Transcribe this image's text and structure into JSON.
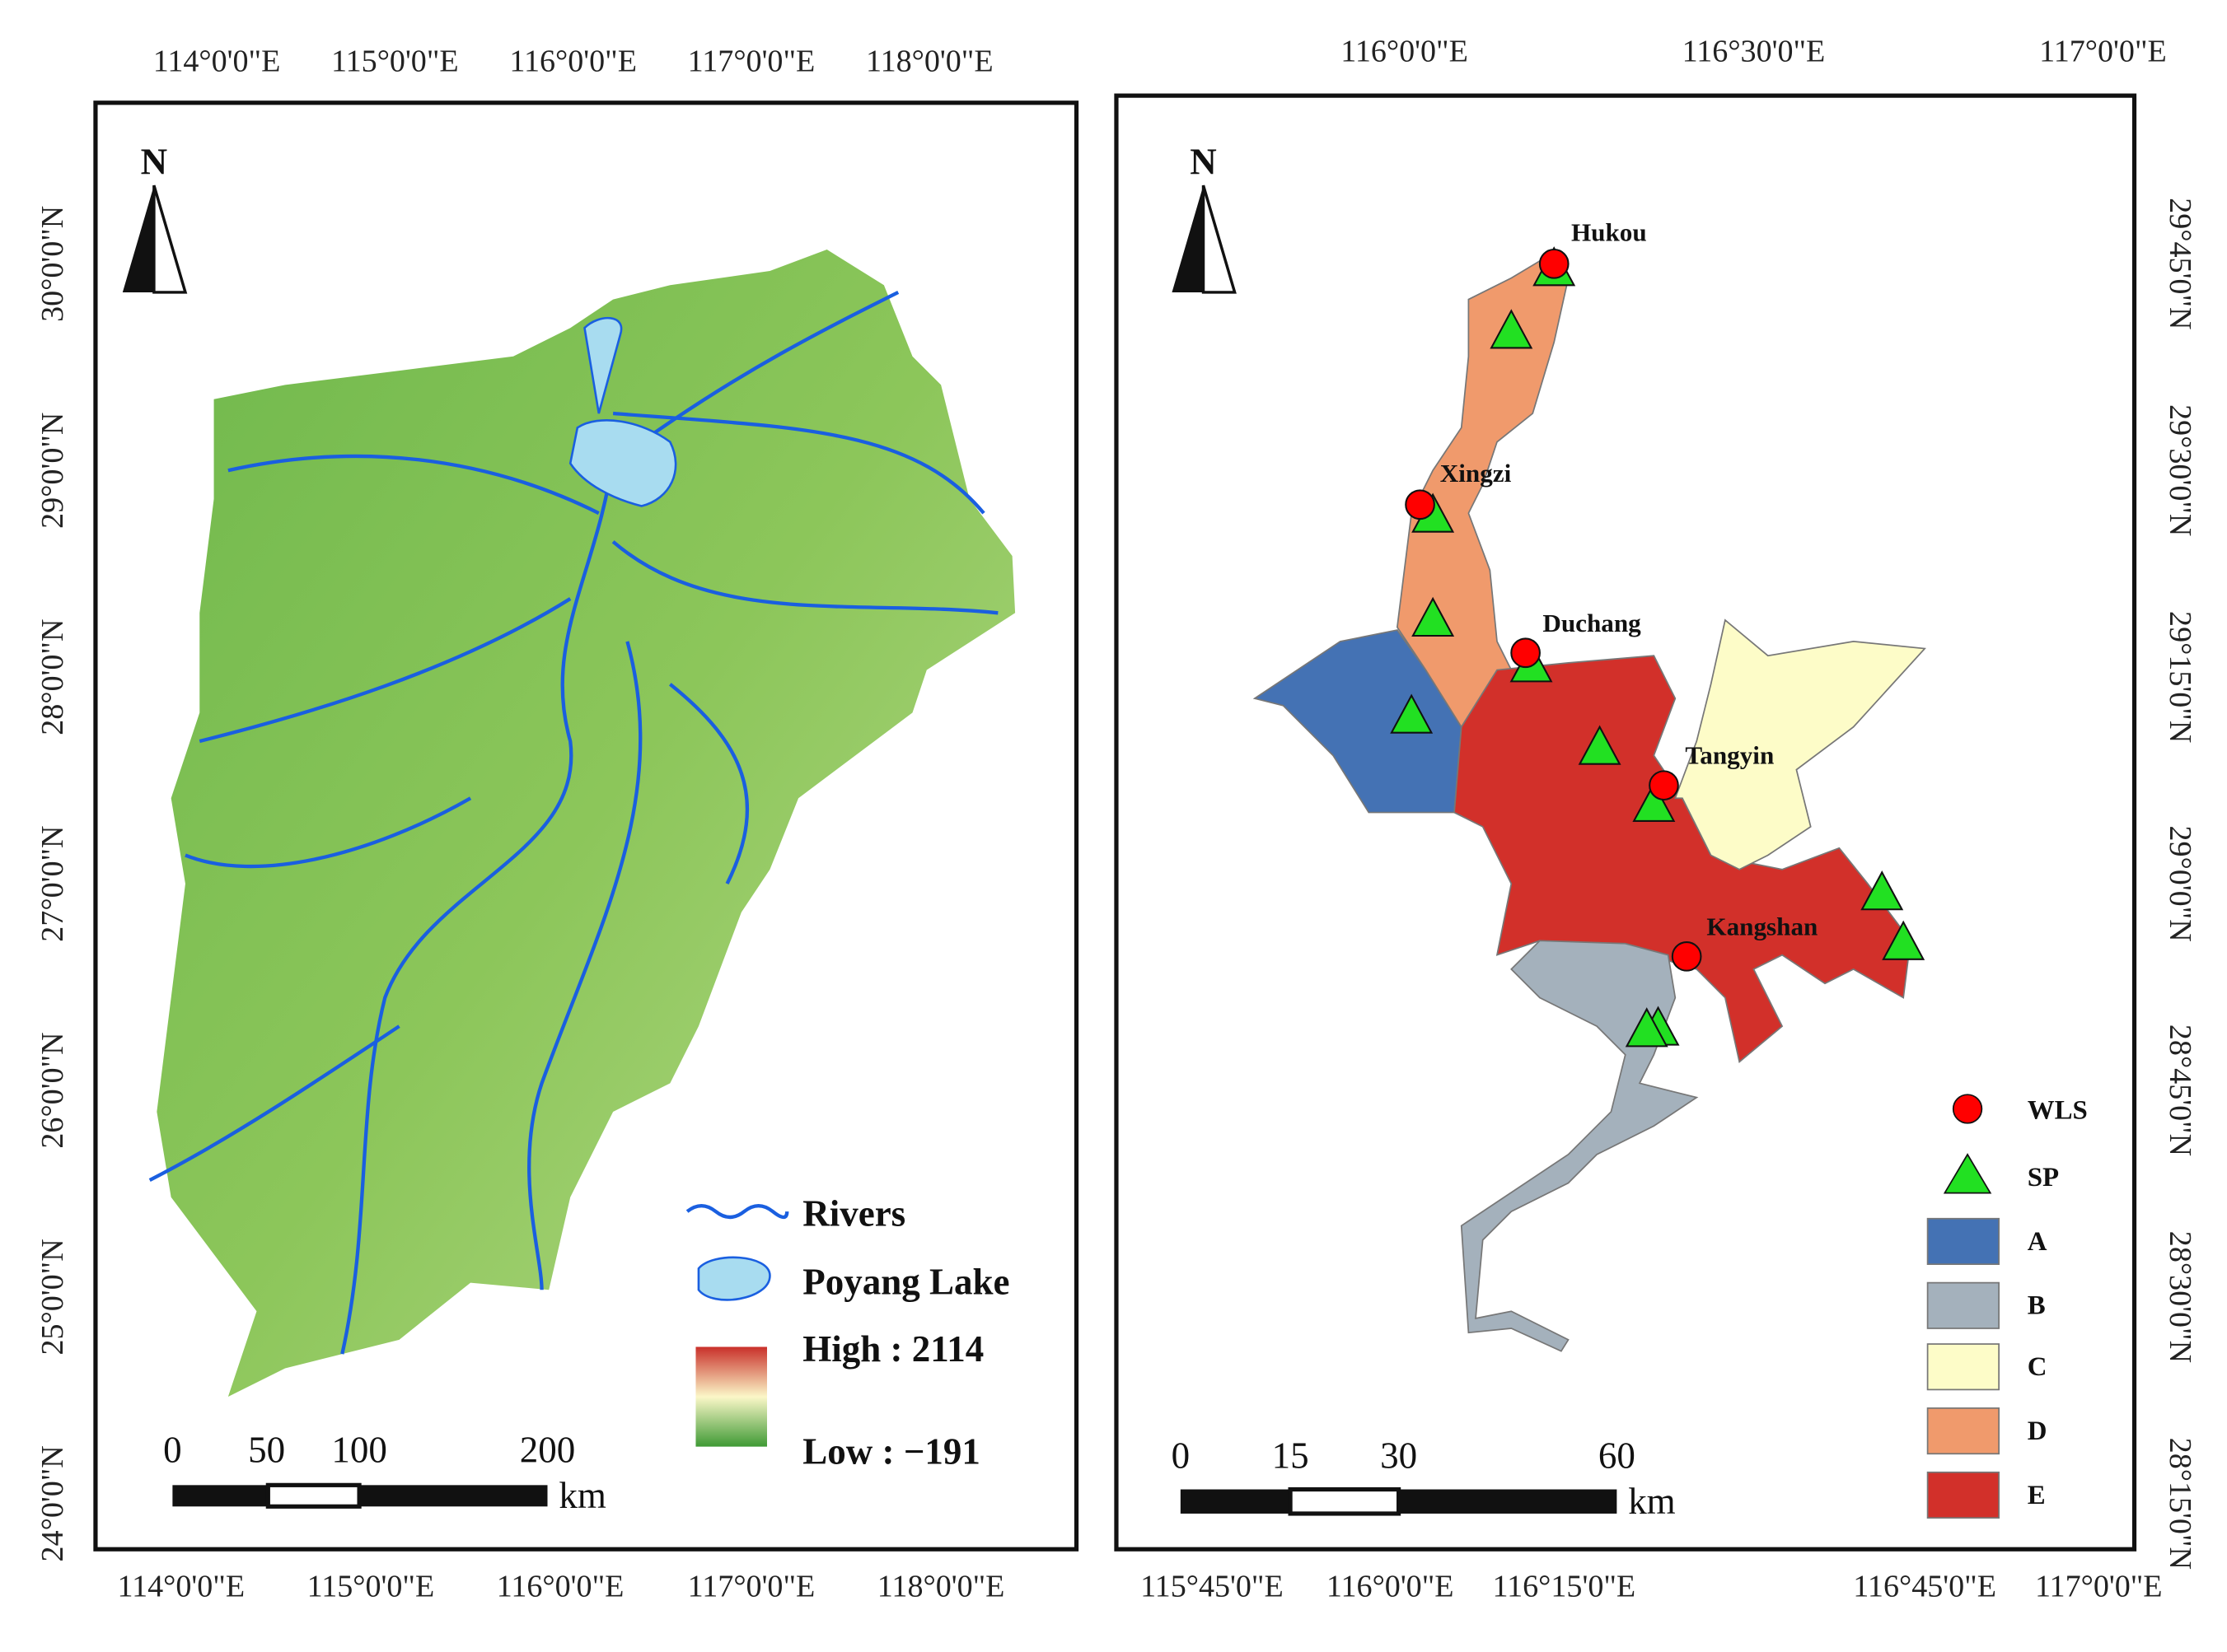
{
  "left_map": {
    "north": "N",
    "top_ticks": [
      "114°0'0\"E",
      "115°0'0\"E",
      "116°0'0\"E",
      "117°0'0\"E",
      "118°0'0\"E"
    ],
    "bottom_ticks": [
      "114°0'0\"E",
      "115°0'0\"E",
      "116°0'0\"E",
      "117°0'0\"E",
      "118°0'0\"E"
    ],
    "left_ticks": [
      "30°0'0\"N",
      "29°0'0\"N",
      "28°0'0\"N",
      "27°0'0\"N",
      "26°0'0\"N",
      "25°0'0\"N",
      "24°0'0\"N"
    ],
    "legend": {
      "rivers": "Rivers",
      "lake": "Poyang Lake",
      "high": "High : 2114",
      "low": "Low : −191"
    },
    "scale": {
      "labels": [
        "0",
        "50",
        "100",
        "200"
      ],
      "unit": "km"
    }
  },
  "right_map": {
    "north": "N",
    "top_ticks": [
      "116°0'0\"E",
      "116°30'0\"E",
      "117°0'0\"E"
    ],
    "bottom_ticks": [
      "115°45'0\"E",
      "116°0'0\"E",
      "116°15'0\"E",
      "116°45'0\"E",
      "117°0'0\"E"
    ],
    "right_ticks": [
      "29°45'0\"N",
      "29°30'0\"N",
      "29°15'0\"N",
      "29°0'0\"N",
      "28°45'0\"N",
      "28°30'0\"N",
      "28°15'0\"N"
    ],
    "stations": [
      "Hukou",
      "Xingzi",
      "Duchang",
      "Tangyin",
      "Kangshan"
    ],
    "legend": [
      "WLS",
      "SP",
      "A",
      "B",
      "C",
      "D",
      "E"
    ],
    "scale": {
      "labels": [
        "0",
        "15",
        "30",
        "60"
      ],
      "unit": "km"
    }
  }
}
